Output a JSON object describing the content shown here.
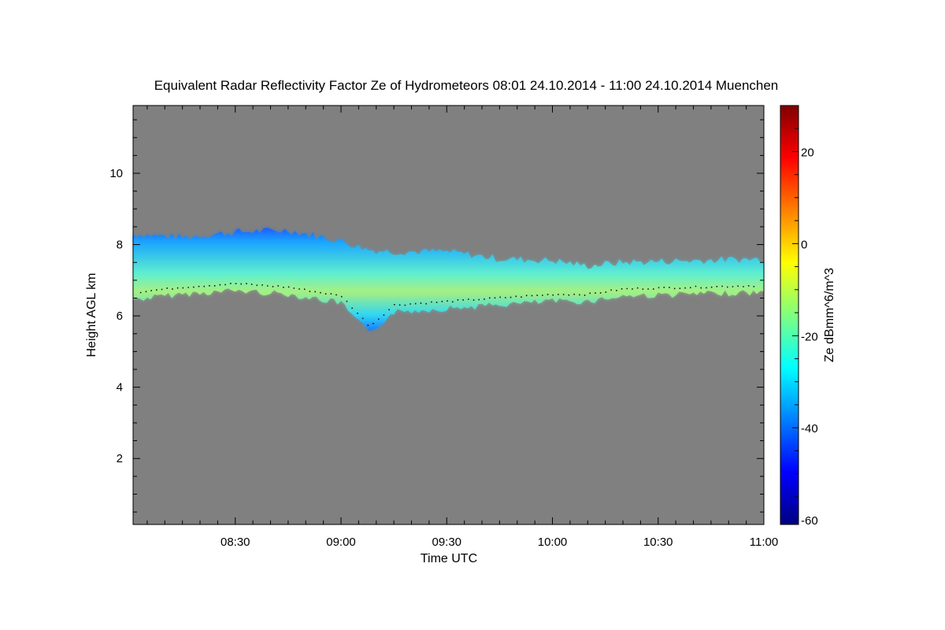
{
  "chart_data": {
    "type": "heatmap",
    "title": "Equivalent Radar Reflectivity Factor Ze of Hydrometeors   08:01 24.10.2014 - 11:00 24.10.2014 Muenchen",
    "xlabel": "Time UTC",
    "ylabel": "Height AGL km",
    "colorbar_label": "Ze dBmm^6/m^3",
    "x_range": [
      "08:01",
      "11:00"
    ],
    "xlim_minutes_utc": [
      481,
      660
    ],
    "x_ticks": [
      {
        "label": "08:30",
        "minutes_utc": 510
      },
      {
        "label": "09:00",
        "minutes_utc": 540
      },
      {
        "label": "09:30",
        "minutes_utc": 570
      },
      {
        "label": "10:00",
        "minutes_utc": 600
      },
      {
        "label": "10:30",
        "minutes_utc": 630
      },
      {
        "label": "11:00",
        "minutes_utc": 660
      }
    ],
    "ylim": [
      0.15,
      11.9
    ],
    "y_ticks": [
      2,
      4,
      6,
      8,
      10
    ],
    "clim": [
      -61,
      30
    ],
    "colorbar_ticks": [
      20,
      0,
      -20,
      -40,
      -60
    ],
    "background_color": "#808080",
    "cloud_layer": {
      "times_minutes_utc": [
        481,
        495,
        510,
        525,
        540,
        548,
        555,
        570,
        585,
        600,
        610,
        620,
        640,
        660
      ],
      "top_km": [
        8.3,
        8.2,
        8.35,
        8.4,
        8.1,
        7.85,
        7.8,
        7.8,
        7.6,
        7.55,
        7.4,
        7.5,
        7.55,
        7.6
      ],
      "base_km": [
        6.55,
        6.7,
        6.8,
        6.7,
        6.45,
        5.6,
        6.2,
        6.3,
        6.4,
        6.5,
        6.5,
        6.65,
        6.7,
        6.75
      ],
      "peak_ze_dbz": -16
    }
  }
}
